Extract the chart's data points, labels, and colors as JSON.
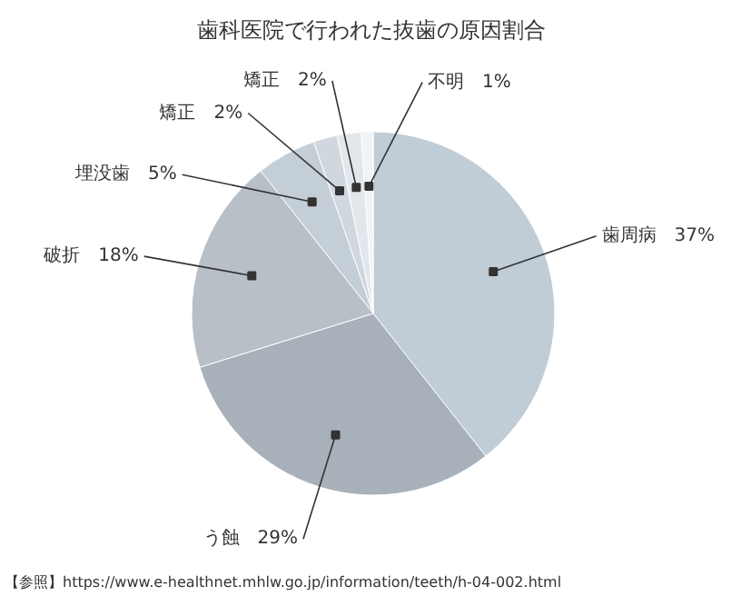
{
  "chart_data": {
    "type": "pie",
    "title": "歯科医院で行われた抜歯の原因割合",
    "categories": [
      "歯周病",
      "う蝕",
      "破折",
      "埋没歯",
      "矯正",
      "矯正",
      "不明"
    ],
    "values": [
      37,
      29,
      18,
      5,
      2,
      2,
      1
    ],
    "value_labels": [
      "37%",
      "29%",
      "18%",
      "5%",
      "2%",
      "2%",
      "1%"
    ],
    "colors": [
      "#c0ccd6",
      "#a8b0ba",
      "#b8bfc7",
      "#c4ced7",
      "#d0d7de",
      "#e2e7ec",
      "#f1f3f5"
    ],
    "annotations": [
      "【参照】https://www.e-healthnet.mhlw.go.jp/information/teeth/h-04-002.html"
    ]
  }
}
